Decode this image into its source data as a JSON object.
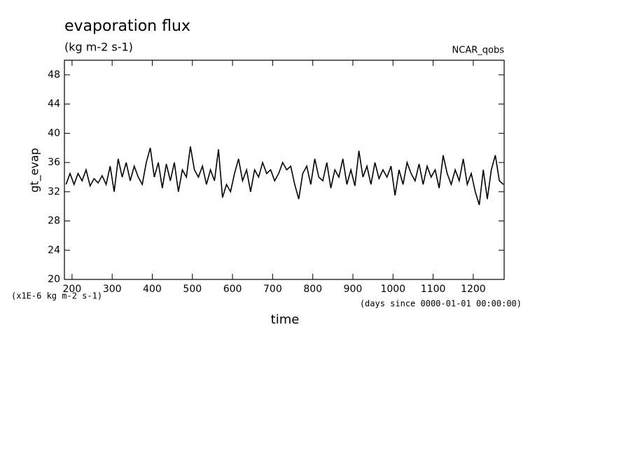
{
  "chart_data": {
    "type": "line",
    "title": "evaporation flux",
    "subtitle": "(kg m-2 s-1)",
    "source_label": "NCAR_qobs",
    "ylabel": "gt_evap",
    "xlabel": "time",
    "y_units_note": "(x1E-6 kg m-2 s-1)",
    "x_units_note": "(days since 0000-01-01 00:00:00)",
    "color": "#000000",
    "xlim": [
      181,
      1277
    ],
    "ylim": [
      20,
      50
    ],
    "xticks": [
      200,
      300,
      400,
      500,
      600,
      700,
      800,
      900,
      1000,
      1100,
      1200
    ],
    "yticks": [
      20,
      24,
      28,
      32,
      36,
      40,
      44,
      48
    ],
    "x": [
      185,
      195,
      205,
      215,
      225,
      235,
      245,
      255,
      265,
      275,
      285,
      295,
      305,
      315,
      325,
      335,
      345,
      355,
      365,
      375,
      385,
      395,
      405,
      415,
      425,
      435,
      445,
      455,
      465,
      475,
      485,
      495,
      505,
      515,
      525,
      535,
      545,
      555,
      565,
      575,
      585,
      595,
      605,
      615,
      625,
      635,
      645,
      655,
      665,
      675,
      685,
      695,
      705,
      715,
      725,
      735,
      745,
      755,
      765,
      775,
      785,
      795,
      805,
      815,
      825,
      835,
      845,
      855,
      865,
      875,
      885,
      895,
      905,
      915,
      925,
      935,
      945,
      955,
      965,
      975,
      985,
      995,
      1005,
      1015,
      1025,
      1035,
      1045,
      1055,
      1065,
      1075,
      1085,
      1095,
      1105,
      1115,
      1125,
      1135,
      1145,
      1155,
      1165,
      1175,
      1185,
      1195,
      1205,
      1215,
      1225,
      1235,
      1245,
      1255,
      1265,
      1275
    ],
    "values": [
      33.0,
      34.5,
      33,
      34.5,
      33.5,
      35,
      32.8,
      33.8,
      33.2,
      34.2,
      33,
      35.5,
      32,
      36.5,
      34,
      36,
      33.5,
      35.5,
      34,
      33,
      36,
      38,
      34,
      36,
      32.5,
      35.8,
      33.5,
      36,
      32,
      35,
      34,
      38.2,
      35,
      34,
      35.5,
      33,
      35,
      33.5,
      37.8,
      31.2,
      33,
      32,
      34.5,
      36.5,
      33.5,
      35,
      32,
      35,
      34,
      36,
      34.5,
      35,
      33.5,
      34.5,
      36,
      35,
      35.5,
      33,
      31,
      34.5,
      35.5,
      33,
      36.5,
      34,
      33.5,
      36,
      32.5,
      35,
      34,
      36.5,
      33,
      35,
      32.8,
      37.6,
      34,
      35.5,
      33,
      36,
      33.8,
      35,
      34,
      35.5,
      31.5,
      35,
      33,
      36,
      34.5,
      33.5,
      35.8,
      33,
      35.5,
      34,
      35,
      32.5,
      37,
      34.5,
      33,
      35,
      33.5,
      36.5,
      33,
      34.5,
      32,
      30.2,
      35,
      31,
      35,
      37,
      33.5,
      33
    ]
  }
}
